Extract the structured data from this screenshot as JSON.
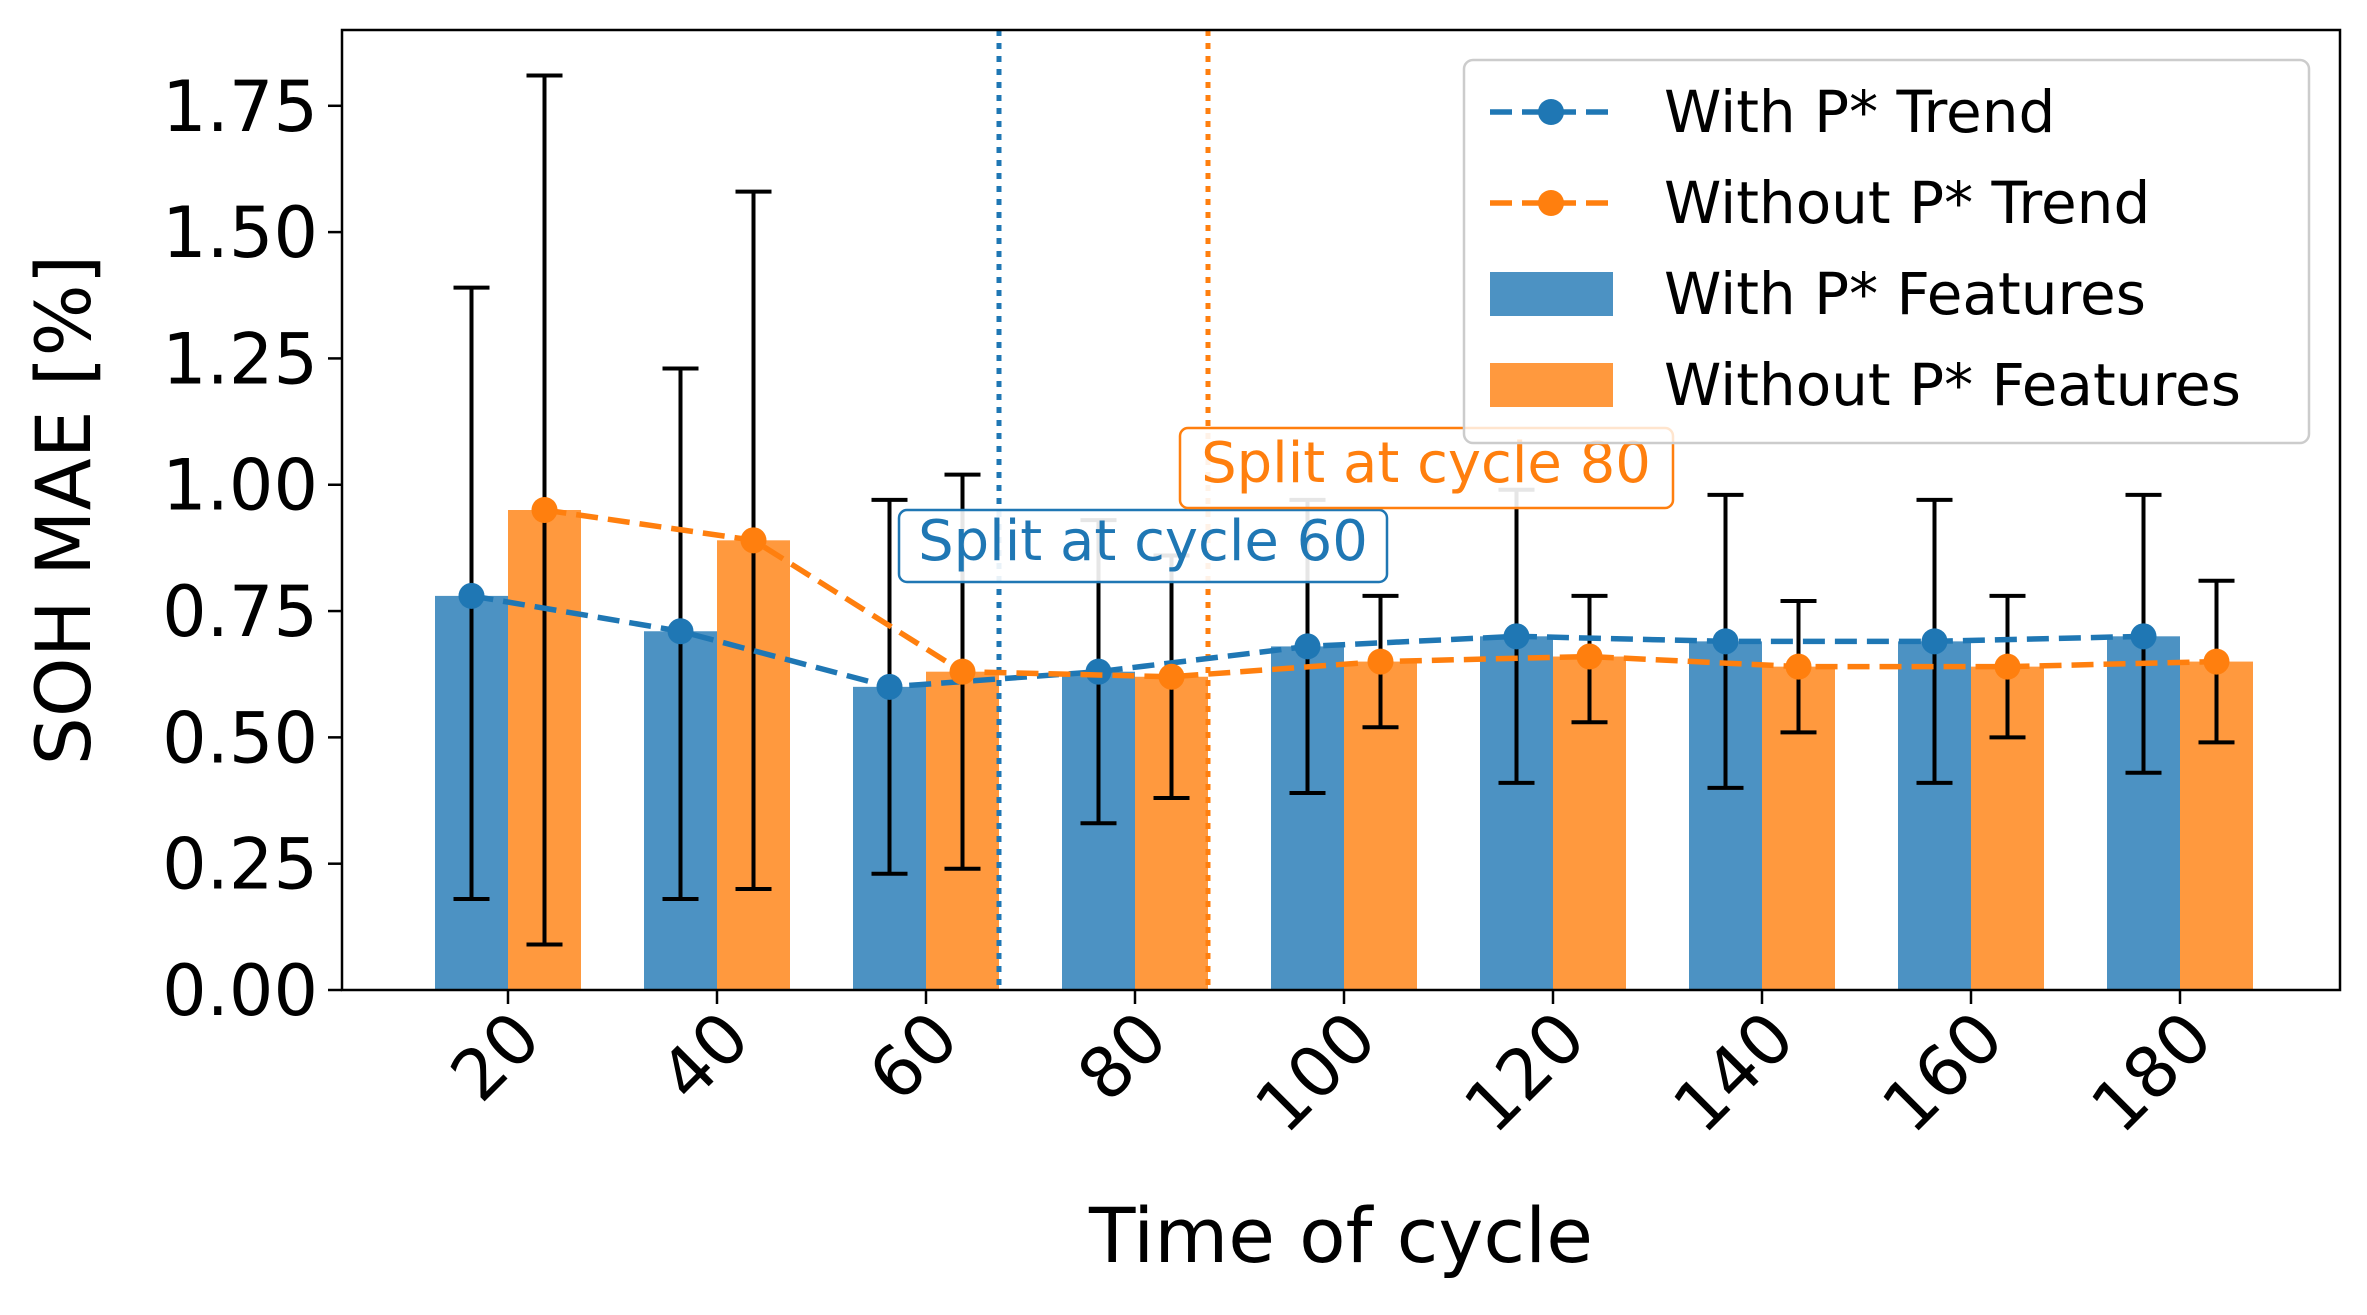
{
  "chart_data": {
    "type": "bar",
    "title": "",
    "xlabel": "Time of cycle",
    "ylabel": "SOH MAE [%]",
    "ylim": [
      0,
      1.9
    ],
    "yticks": [
      "0.00",
      "0.25",
      "0.50",
      "0.75",
      "1.00",
      "1.25",
      "1.50",
      "1.75"
    ],
    "categories": [
      "20",
      "40",
      "60",
      "80",
      "100",
      "120",
      "140",
      "160",
      "180"
    ],
    "grid": false,
    "legend_position": "top-right",
    "colors": {
      "with": "#1f77b4",
      "without": "#ff7f0e"
    },
    "series": [
      {
        "name": "With P* Features",
        "kind": "bar",
        "color": "#1f77b4",
        "values": [
          0.78,
          0.71,
          0.6,
          0.63,
          0.68,
          0.7,
          0.69,
          0.69,
          0.7
        ],
        "err_low": [
          0.18,
          0.18,
          0.23,
          0.33,
          0.39,
          0.41,
          0.4,
          0.41,
          0.43
        ],
        "err_high": [
          1.39,
          1.23,
          0.97,
          0.93,
          0.97,
          0.99,
          0.98,
          0.97,
          0.98
        ]
      },
      {
        "name": "Without P* Features",
        "kind": "bar",
        "color": "#ff7f0e",
        "values": [
          0.95,
          0.89,
          0.63,
          0.62,
          0.65,
          0.66,
          0.64,
          0.64,
          0.65
        ],
        "err_low": [
          0.09,
          0.2,
          0.24,
          0.38,
          0.52,
          0.53,
          0.51,
          0.5,
          0.49
        ],
        "err_high": [
          1.81,
          1.58,
          1.02,
          0.86,
          0.78,
          0.78,
          0.77,
          0.78,
          0.81
        ]
      },
      {
        "name": "With P* Trend",
        "kind": "line",
        "color": "#1f77b4",
        "values": [
          0.78,
          0.71,
          0.6,
          0.63,
          0.68,
          0.7,
          0.69,
          0.69,
          0.7
        ]
      },
      {
        "name": "Without P* Trend",
        "kind": "line",
        "color": "#ff7f0e",
        "values": [
          0.95,
          0.89,
          0.63,
          0.62,
          0.65,
          0.66,
          0.64,
          0.64,
          0.65
        ]
      }
    ],
    "legend": [
      "With P* Trend",
      "Without P* Trend",
      "With P* Features",
      "Without P* Features"
    ],
    "annotations": [
      {
        "text": "Split at cycle 60",
        "split_category": "60",
        "color": "#1f77b4"
      },
      {
        "text": "Split at cycle 80",
        "split_category": "80",
        "color": "#ff7f0e"
      }
    ]
  }
}
